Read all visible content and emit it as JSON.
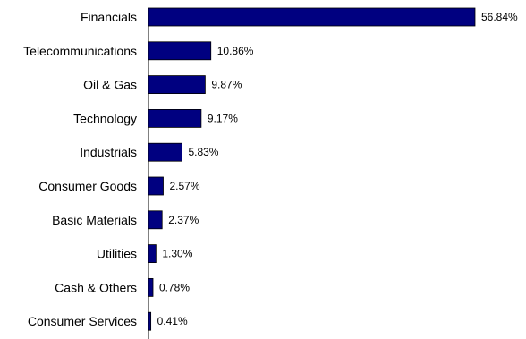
{
  "chart_data": {
    "type": "bar",
    "orientation": "horizontal",
    "title": "",
    "xlabel": "",
    "ylabel": "",
    "categories": [
      "Financials",
      "Telecommunications",
      "Oil & Gas",
      "Technology",
      "Industrials",
      "Consumer Goods",
      "Basic Materials",
      "Utilities",
      "Cash & Others",
      "Consumer Services"
    ],
    "values": [
      56.84,
      10.86,
      9.87,
      9.17,
      5.83,
      2.57,
      2.37,
      1.3,
      0.78,
      0.41
    ],
    "value_labels": [
      "56.84%",
      "10.86%",
      "9.87%",
      "9.17%",
      "5.83%",
      "2.57%",
      "2.37%",
      "1.30%",
      "0.78%",
      "0.41%"
    ],
    "xlim": [
      0,
      56.84
    ],
    "grid": false,
    "legend": "none",
    "bar_color": "#000080",
    "bar_border_color": "#000000",
    "axis_color": "#000000"
  }
}
